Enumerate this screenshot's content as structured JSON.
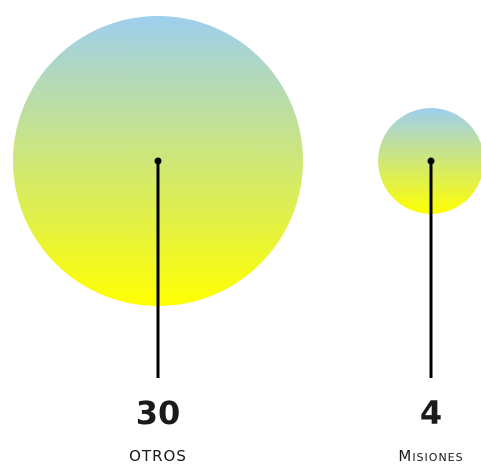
{
  "chart_data": {
    "type": "bubble",
    "categories": [
      "OTROS",
      "Misiones"
    ],
    "values": [
      30,
      4
    ],
    "value_labels": [
      "30",
      "4"
    ],
    "colors": {
      "gradient_top": "#9ecfee",
      "gradient_bottom": "#ffff00",
      "stem": "#000000"
    }
  }
}
